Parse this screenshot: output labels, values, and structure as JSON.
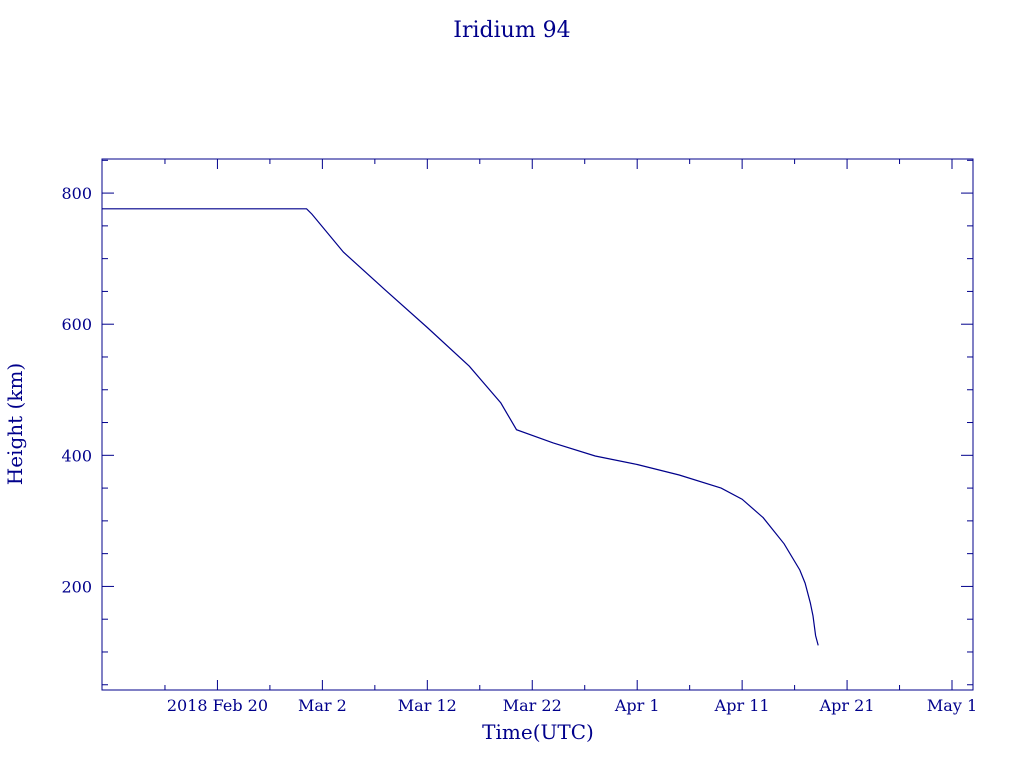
{
  "colors": {
    "axis": "#00008b",
    "line": "#00008b",
    "background": "#ffffff"
  },
  "chart_data": {
    "type": "line",
    "title": "Iridium 94",
    "xlabel": "Time(UTC)",
    "ylabel": "Height (km)",
    "x_is_date": true,
    "xlim": [
      "2018-02-09",
      "2018-05-03"
    ],
    "ylim": [
      42,
      852
    ],
    "x_ticks": [
      {
        "date": "2018-02-20",
        "label": "2018 Feb 20"
      },
      {
        "date": "2018-03-02",
        "label": "Mar  2"
      },
      {
        "date": "2018-03-12",
        "label": "Mar 12"
      },
      {
        "date": "2018-03-22",
        "label": "Mar 22"
      },
      {
        "date": "2018-04-01",
        "label": "Apr  1"
      },
      {
        "date": "2018-04-11",
        "label": "Apr 11"
      },
      {
        "date": "2018-04-21",
        "label": "Apr 21"
      },
      {
        "date": "2018-05-01",
        "label": "May  1"
      }
    ],
    "x_minor_tick_dates": [
      "2018-02-15",
      "2018-02-25",
      "2018-03-07",
      "2018-03-17",
      "2018-03-27",
      "2018-04-06",
      "2018-04-16",
      "2018-04-26"
    ],
    "y_ticks": [
      200,
      400,
      600,
      800
    ],
    "y_minor_step": 50,
    "grid": false,
    "series": [
      {
        "x": [
          "2018-02-09",
          "2018-02-28T12:00",
          "2018-03-01",
          "2018-03-04",
          "2018-03-08",
          "2018-03-12",
          "2018-03-16",
          "2018-03-19",
          "2018-03-20T12:00",
          "2018-03-24",
          "2018-03-28",
          "2018-04-01",
          "2018-04-05",
          "2018-04-09",
          "2018-04-11",
          "2018-04-13",
          "2018-04-15",
          "2018-04-16T12:00",
          "2018-04-17",
          "2018-04-17T12:00",
          "2018-04-17T18:00",
          "2018-04-18",
          "2018-04-18T06:00"
        ],
        "y": [
          776,
          776,
          768,
          710,
          652,
          595,
          536,
          480,
          439,
          419,
          399,
          386,
          370,
          350,
          333,
          305,
          265,
          225,
          205,
          175,
          155,
          125,
          110
        ]
      }
    ]
  }
}
